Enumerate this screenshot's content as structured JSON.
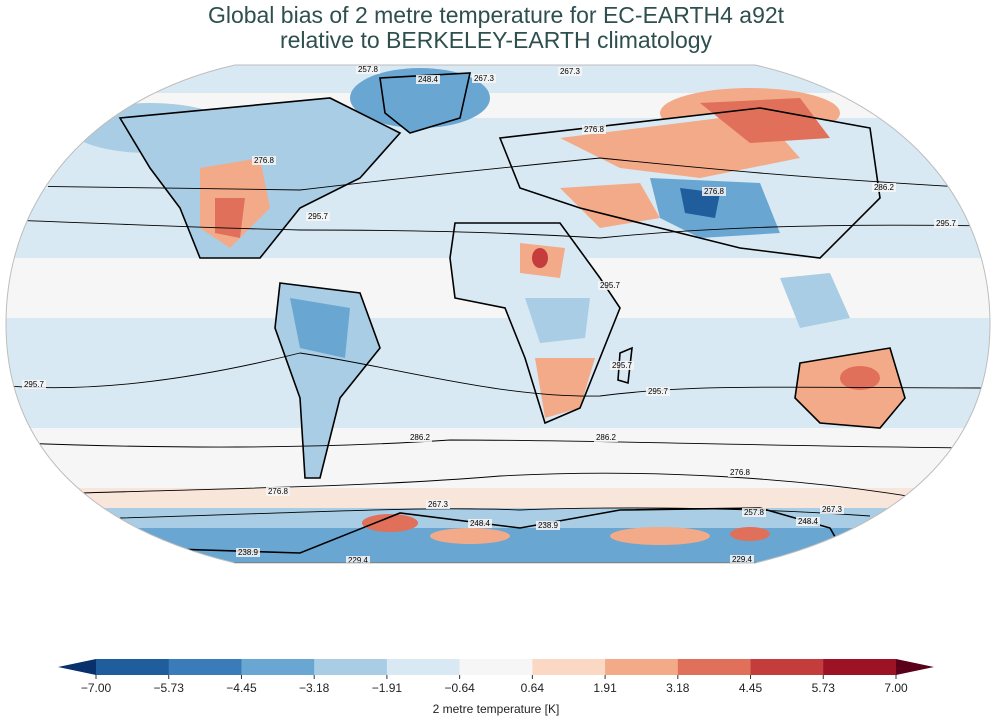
{
  "title": {
    "line1": "Global bias of 2 metre temperature for EC-EARTH4 a92t",
    "line2": "relative to BERKELEY-EARTH climatology"
  },
  "map": {
    "projection": "Robinson",
    "contour_labels": [
      "257.8",
      "248.4",
      "267.3",
      "267.3",
      "276.8",
      "276.8",
      "286.2",
      "286.2",
      "295.7",
      "295.7",
      "276.8",
      "295.7",
      "295.7",
      "295.7",
      "295.7",
      "286.2",
      "286.2",
      "276.8",
      "276.8",
      "267.3",
      "267.3",
      "257.8",
      "238.9",
      "248.4",
      "238.9",
      "229.4",
      "229.4",
      "248.4"
    ]
  },
  "colorbar": {
    "label": "2 metre temperature [K]",
    "ticks": [
      "−7.00",
      "−5.73",
      "−4.45",
      "−3.18",
      "−1.91",
      "−0.64",
      "0.64",
      "1.91",
      "3.18",
      "4.45",
      "5.73",
      "7.00"
    ],
    "colors": [
      "#1f5d9c",
      "#3a7cba",
      "#6aa6d2",
      "#a8cde4",
      "#d9e9f3",
      "#f6f6f6",
      "#fbd8c4",
      "#f3aa88",
      "#e0705a",
      "#c43c3c",
      "#9e1226"
    ],
    "under_color": "#08306b",
    "over_color": "#5a0018",
    "extend": "both"
  }
}
